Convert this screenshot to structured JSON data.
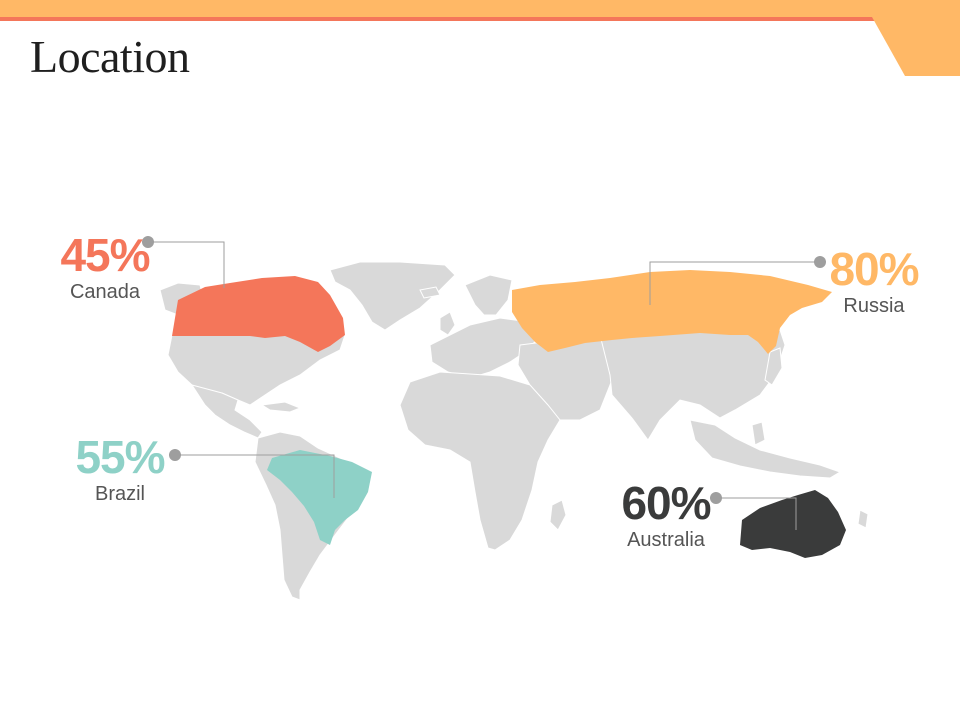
{
  "title": "Location",
  "colors": {
    "accent_orange": "#FFB866",
    "accent_red": "#F4765A",
    "map_land": "#D9D9D9",
    "connector": "#9E9E9E"
  },
  "regions": [
    {
      "key": "canada",
      "country": "Canada",
      "percent": "45%",
      "color": "#F4765A"
    },
    {
      "key": "russia",
      "country": "Russia",
      "percent": "80%",
      "color": "#FFB866"
    },
    {
      "key": "brazil",
      "country": "Brazil",
      "percent": "55%",
      "color": "#8ED1C7"
    },
    {
      "key": "australia",
      "country": "Australia",
      "percent": "60%",
      "color": "#3A3B3B"
    }
  ]
}
